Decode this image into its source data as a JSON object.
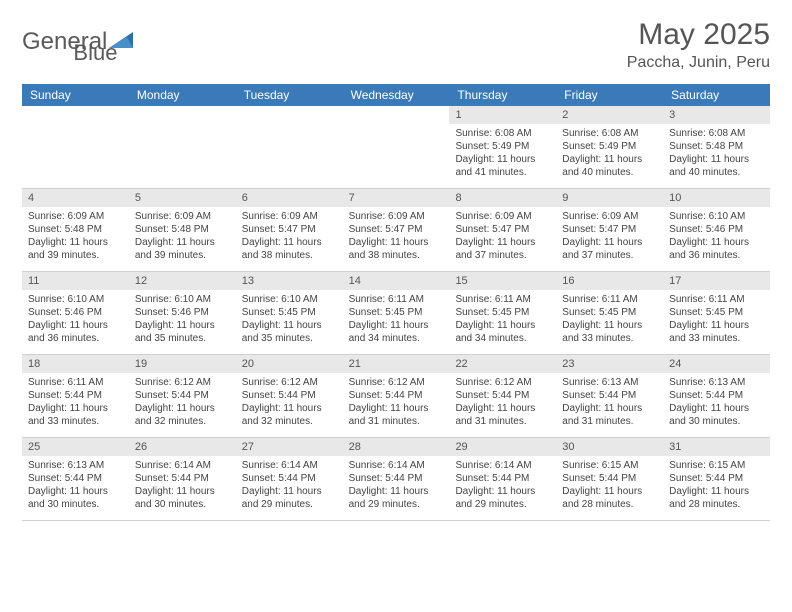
{
  "brand": {
    "text_gray": "General",
    "text_blue": "Blue"
  },
  "title": "May 2025",
  "location": "Paccha, Junin, Peru",
  "colors": {
    "header_bg": "#3a7ab8",
    "header_text": "#ffffff",
    "daynum_bg": "#e8e8e8",
    "page_bg": "#ffffff",
    "text_main": "#444444",
    "title_color": "#555555",
    "border": "#d0d0d0"
  },
  "weekdays": [
    "Sunday",
    "Monday",
    "Tuesday",
    "Wednesday",
    "Thursday",
    "Friday",
    "Saturday"
  ],
  "weeks": [
    [
      null,
      null,
      null,
      null,
      {
        "n": "1",
        "sr": "Sunrise: 6:08 AM",
        "ss": "Sunset: 5:49 PM",
        "dl1": "Daylight: 11 hours",
        "dl2": "and 41 minutes."
      },
      {
        "n": "2",
        "sr": "Sunrise: 6:08 AM",
        "ss": "Sunset: 5:49 PM",
        "dl1": "Daylight: 11 hours",
        "dl2": "and 40 minutes."
      },
      {
        "n": "3",
        "sr": "Sunrise: 6:08 AM",
        "ss": "Sunset: 5:48 PM",
        "dl1": "Daylight: 11 hours",
        "dl2": "and 40 minutes."
      }
    ],
    [
      {
        "n": "4",
        "sr": "Sunrise: 6:09 AM",
        "ss": "Sunset: 5:48 PM",
        "dl1": "Daylight: 11 hours",
        "dl2": "and 39 minutes."
      },
      {
        "n": "5",
        "sr": "Sunrise: 6:09 AM",
        "ss": "Sunset: 5:48 PM",
        "dl1": "Daylight: 11 hours",
        "dl2": "and 39 minutes."
      },
      {
        "n": "6",
        "sr": "Sunrise: 6:09 AM",
        "ss": "Sunset: 5:47 PM",
        "dl1": "Daylight: 11 hours",
        "dl2": "and 38 minutes."
      },
      {
        "n": "7",
        "sr": "Sunrise: 6:09 AM",
        "ss": "Sunset: 5:47 PM",
        "dl1": "Daylight: 11 hours",
        "dl2": "and 38 minutes."
      },
      {
        "n": "8",
        "sr": "Sunrise: 6:09 AM",
        "ss": "Sunset: 5:47 PM",
        "dl1": "Daylight: 11 hours",
        "dl2": "and 37 minutes."
      },
      {
        "n": "9",
        "sr": "Sunrise: 6:09 AM",
        "ss": "Sunset: 5:47 PM",
        "dl1": "Daylight: 11 hours",
        "dl2": "and 37 minutes."
      },
      {
        "n": "10",
        "sr": "Sunrise: 6:10 AM",
        "ss": "Sunset: 5:46 PM",
        "dl1": "Daylight: 11 hours",
        "dl2": "and 36 minutes."
      }
    ],
    [
      {
        "n": "11",
        "sr": "Sunrise: 6:10 AM",
        "ss": "Sunset: 5:46 PM",
        "dl1": "Daylight: 11 hours",
        "dl2": "and 36 minutes."
      },
      {
        "n": "12",
        "sr": "Sunrise: 6:10 AM",
        "ss": "Sunset: 5:46 PM",
        "dl1": "Daylight: 11 hours",
        "dl2": "and 35 minutes."
      },
      {
        "n": "13",
        "sr": "Sunrise: 6:10 AM",
        "ss": "Sunset: 5:45 PM",
        "dl1": "Daylight: 11 hours",
        "dl2": "and 35 minutes."
      },
      {
        "n": "14",
        "sr": "Sunrise: 6:11 AM",
        "ss": "Sunset: 5:45 PM",
        "dl1": "Daylight: 11 hours",
        "dl2": "and 34 minutes."
      },
      {
        "n": "15",
        "sr": "Sunrise: 6:11 AM",
        "ss": "Sunset: 5:45 PM",
        "dl1": "Daylight: 11 hours",
        "dl2": "and 34 minutes."
      },
      {
        "n": "16",
        "sr": "Sunrise: 6:11 AM",
        "ss": "Sunset: 5:45 PM",
        "dl1": "Daylight: 11 hours",
        "dl2": "and 33 minutes."
      },
      {
        "n": "17",
        "sr": "Sunrise: 6:11 AM",
        "ss": "Sunset: 5:45 PM",
        "dl1": "Daylight: 11 hours",
        "dl2": "and 33 minutes."
      }
    ],
    [
      {
        "n": "18",
        "sr": "Sunrise: 6:11 AM",
        "ss": "Sunset: 5:44 PM",
        "dl1": "Daylight: 11 hours",
        "dl2": "and 33 minutes."
      },
      {
        "n": "19",
        "sr": "Sunrise: 6:12 AM",
        "ss": "Sunset: 5:44 PM",
        "dl1": "Daylight: 11 hours",
        "dl2": "and 32 minutes."
      },
      {
        "n": "20",
        "sr": "Sunrise: 6:12 AM",
        "ss": "Sunset: 5:44 PM",
        "dl1": "Daylight: 11 hours",
        "dl2": "and 32 minutes."
      },
      {
        "n": "21",
        "sr": "Sunrise: 6:12 AM",
        "ss": "Sunset: 5:44 PM",
        "dl1": "Daylight: 11 hours",
        "dl2": "and 31 minutes."
      },
      {
        "n": "22",
        "sr": "Sunrise: 6:12 AM",
        "ss": "Sunset: 5:44 PM",
        "dl1": "Daylight: 11 hours",
        "dl2": "and 31 minutes."
      },
      {
        "n": "23",
        "sr": "Sunrise: 6:13 AM",
        "ss": "Sunset: 5:44 PM",
        "dl1": "Daylight: 11 hours",
        "dl2": "and 31 minutes."
      },
      {
        "n": "24",
        "sr": "Sunrise: 6:13 AM",
        "ss": "Sunset: 5:44 PM",
        "dl1": "Daylight: 11 hours",
        "dl2": "and 30 minutes."
      }
    ],
    [
      {
        "n": "25",
        "sr": "Sunrise: 6:13 AM",
        "ss": "Sunset: 5:44 PM",
        "dl1": "Daylight: 11 hours",
        "dl2": "and 30 minutes."
      },
      {
        "n": "26",
        "sr": "Sunrise: 6:14 AM",
        "ss": "Sunset: 5:44 PM",
        "dl1": "Daylight: 11 hours",
        "dl2": "and 30 minutes."
      },
      {
        "n": "27",
        "sr": "Sunrise: 6:14 AM",
        "ss": "Sunset: 5:44 PM",
        "dl1": "Daylight: 11 hours",
        "dl2": "and 29 minutes."
      },
      {
        "n": "28",
        "sr": "Sunrise: 6:14 AM",
        "ss": "Sunset: 5:44 PM",
        "dl1": "Daylight: 11 hours",
        "dl2": "and 29 minutes."
      },
      {
        "n": "29",
        "sr": "Sunrise: 6:14 AM",
        "ss": "Sunset: 5:44 PM",
        "dl1": "Daylight: 11 hours",
        "dl2": "and 29 minutes."
      },
      {
        "n": "30",
        "sr": "Sunrise: 6:15 AM",
        "ss": "Sunset: 5:44 PM",
        "dl1": "Daylight: 11 hours",
        "dl2": "and 28 minutes."
      },
      {
        "n": "31",
        "sr": "Sunrise: 6:15 AM",
        "ss": "Sunset: 5:44 PM",
        "dl1": "Daylight: 11 hours",
        "dl2": "and 28 minutes."
      }
    ]
  ]
}
